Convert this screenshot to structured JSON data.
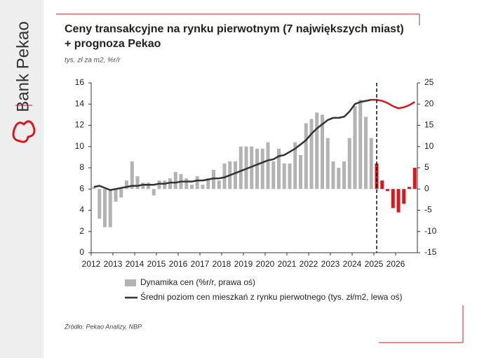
{
  "brand": "Bank Pekao",
  "chart_data": {
    "type": "combo",
    "title": [
      "Ceny transakcyjne na rynku pierwotnym (7 największych miast)",
      "+ prognoza Pekao"
    ],
    "subtitle": "tys. zł za m2, %r/r",
    "source": "Źródło: Pekao Analizy, NBP",
    "forecast_start": 2025,
    "x": [
      2012,
      2012.25,
      2012.5,
      2012.75,
      2013,
      2013.25,
      2013.5,
      2013.75,
      2014,
      2014.25,
      2014.5,
      2014.75,
      2015,
      2015.25,
      2015.5,
      2015.75,
      2016,
      2016.25,
      2016.5,
      2016.75,
      2017,
      2017.25,
      2017.5,
      2017.75,
      2018,
      2018.25,
      2018.5,
      2018.75,
      2019,
      2019.25,
      2019.5,
      2019.75,
      2020,
      2020.25,
      2020.5,
      2020.75,
      2021,
      2021.25,
      2021.5,
      2021.75,
      2022,
      2022.25,
      2022.5,
      2022.75,
      2023,
      2023.25,
      2023.5,
      2023.75,
      2024,
      2024.25,
      2024.5,
      2024.75,
      2025,
      2025.25,
      2025.5,
      2025.75,
      2026,
      2026.25,
      2026.5,
      2026.75
    ],
    "xlim": [
      2012,
      2027
    ],
    "xticks": [
      2012,
      2013,
      2014,
      2015,
      2016,
      2017,
      2018,
      2019,
      2020,
      2021,
      2022,
      2023,
      2024,
      2025,
      2026
    ],
    "ylim": [
      0,
      16
    ],
    "yticks": [
      0,
      2,
      4,
      6,
      8,
      10,
      12,
      14,
      16
    ],
    "y2lim": [
      -15,
      25
    ],
    "y2ticks": [
      -15,
      -10,
      -5,
      0,
      5,
      10,
      15,
      20,
      25
    ],
    "series": [
      {
        "name": "Dynamika cen (%r/r, prawa oś)",
        "type": "bar",
        "axis": "y2",
        "color": "#b3b3b3",
        "forecast_color": "#d7191f",
        "values": [
          0.5,
          -7,
          -9,
          -9,
          -3,
          -2,
          2,
          6.5,
          3,
          1.5,
          1.5,
          -1.5,
          2,
          2,
          2.5,
          4,
          3.5,
          2.5,
          1,
          3,
          1,
          2.5,
          4.5,
          2,
          6,
          6.5,
          6.5,
          10,
          10,
          10,
          9.5,
          9.5,
          11,
          6.5,
          9.5,
          6,
          6,
          11,
          8,
          15.5,
          16.5,
          18,
          17.5,
          12,
          6.5,
          5,
          6.5,
          12,
          19.5,
          21,
          17,
          12,
          6,
          2,
          -0.5,
          -4.5,
          -5.5,
          -3.5,
          0.5,
          5
        ]
      },
      {
        "name": "Średni poziom cen mieszkań z rynku pierwotnego (tys. zł/m2, lewa oś)",
        "type": "line",
        "color": "#333333",
        "forecast_color": "#d7191f",
        "values": [
          6.2,
          6.3,
          6.1,
          5.9,
          6.0,
          6.1,
          6.2,
          6.3,
          6.3,
          6.4,
          6.4,
          6.4,
          6.5,
          6.5,
          6.6,
          6.6,
          6.7,
          6.7,
          6.7,
          6.8,
          6.8,
          6.9,
          7.0,
          7.0,
          7.1,
          7.3,
          7.5,
          7.7,
          7.9,
          8.1,
          8.3,
          8.5,
          8.7,
          8.8,
          9.1,
          9.2,
          9.5,
          9.8,
          10.2,
          10.6,
          11.2,
          11.7,
          12.1,
          12.5,
          12.7,
          12.7,
          12.8,
          13.3,
          14.0,
          14.2,
          14.3,
          14.4,
          14.4,
          14.3,
          14.1,
          13.8,
          13.6,
          13.7,
          13.9,
          14.2
        ]
      }
    ]
  }
}
